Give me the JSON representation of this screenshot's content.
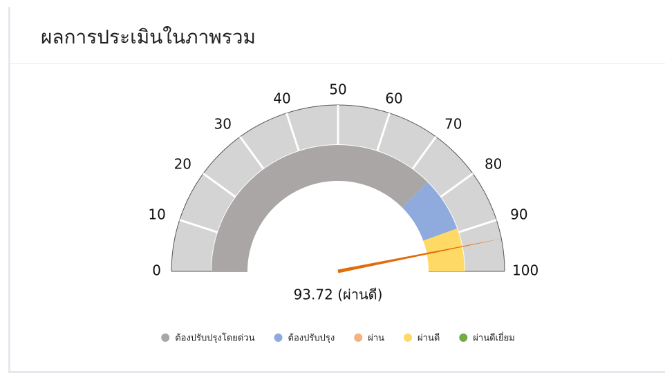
{
  "header": {
    "title": "ผลการประเมินในภาพรวม"
  },
  "chart_data": {
    "type": "gauge",
    "value": 93.72,
    "value_label": "93.72 (ผ่านดี)",
    "ylim": [
      0,
      100
    ],
    "yticks": [
      0,
      10,
      20,
      30,
      40,
      50,
      60,
      70,
      80,
      90,
      100
    ],
    "scale_color": "#d4d4d4",
    "needle_color": "#e36c0a",
    "series": [
      {
        "name": "ต้องปรับปรุงโดยด่วน",
        "color": "#aaa6a6",
        "range": [
          0,
          75
        ]
      },
      {
        "name": "ต้องปรับปรุง",
        "color": "#8faadc",
        "range": [
          75,
          89
        ]
      },
      {
        "name": "ผ่าน",
        "color": "#f4b183"
      },
      {
        "name": "ผ่านดี",
        "color": "#ffd966",
        "range": [
          89,
          100
        ]
      },
      {
        "name": "ผ่านดีเยี่ยม",
        "color": "#70ad47"
      }
    ]
  }
}
